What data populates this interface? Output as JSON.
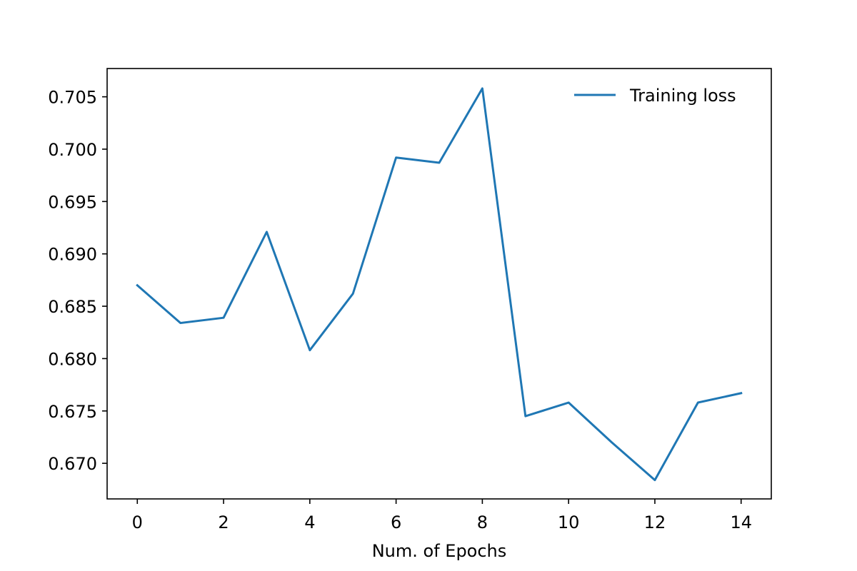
{
  "chart_data": {
    "type": "line",
    "title": "",
    "xlabel": "Num. of Epochs",
    "ylabel": "",
    "xlim": [
      -0.7,
      14.7
    ],
    "ylim": [
      0.6666,
      0.7077
    ],
    "xticks": [
      0,
      2,
      4,
      6,
      8,
      10,
      12,
      14
    ],
    "yticks": [
      0.67,
      0.675,
      0.68,
      0.685,
      0.69,
      0.695,
      0.7,
      0.705
    ],
    "ytick_labels": [
      "0.670",
      "0.675",
      "0.680",
      "0.685",
      "0.690",
      "0.695",
      "0.700",
      "0.705"
    ],
    "grid": false,
    "legend_position": "top-right",
    "series": [
      {
        "name": "Training loss",
        "color": "#1f77b4",
        "x": [
          0,
          1,
          2,
          3,
          4,
          5,
          6,
          7,
          8,
          9,
          10,
          11,
          12,
          13,
          14
        ],
        "values": [
          0.687,
          0.6834,
          0.6839,
          0.6921,
          0.6808,
          0.6862,
          0.6992,
          0.6987,
          0.7058,
          0.6745,
          0.6758,
          0.672,
          0.6684,
          0.6758,
          0.6767
        ]
      }
    ]
  }
}
